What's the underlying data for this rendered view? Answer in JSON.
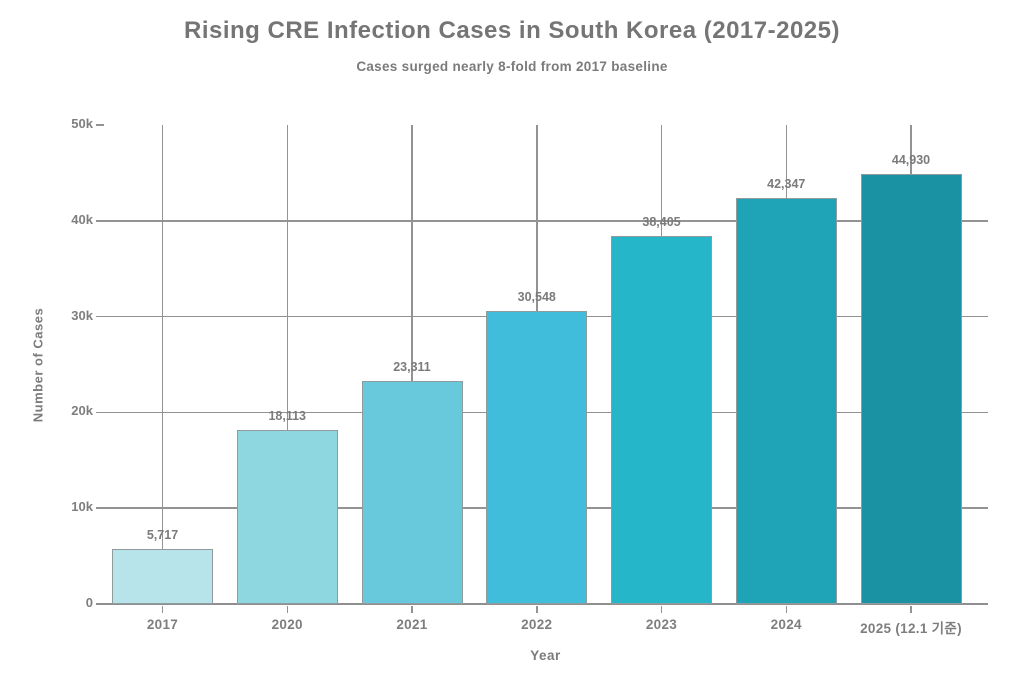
{
  "chart_data": {
    "type": "bar",
    "title": "Rising CRE Infection Cases in South Korea (2017-2025)",
    "subtitle": "Cases surged nearly 8-fold from 2017 baseline",
    "xlabel": "Year",
    "ylabel": "Number of Cases",
    "categories": [
      "2017",
      "2020",
      "2021",
      "2022",
      "2023",
      "2024",
      "2025 (12.1 기준)"
    ],
    "values": [
      5717,
      18113,
      23311,
      30548,
      38405,
      42347,
      44930
    ],
    "value_labels": [
      "5,717",
      "18,113",
      "23,311",
      "30,548",
      "38,405",
      "42,347",
      "44,930"
    ],
    "ylim": [
      0,
      50000
    ],
    "ytick_values": [
      0,
      10000,
      20000,
      30000,
      40000,
      50000
    ],
    "ytick_labels": [
      "0",
      "10k",
      "20k",
      "30k",
      "40k",
      "50k"
    ],
    "grid": "horizontal-and-vertical, no gridline at 50k, legend none",
    "bar_colors": [
      "#b7e4ea",
      "#8fd7e0",
      "#68c9dd",
      "#3fbddb",
      "#26b6ca",
      "#1fa3b7",
      "#1b92a3"
    ],
    "bar_border_color": "#8f9b9c",
    "grid_color": "#939393",
    "axis_color": "#8f8f8f",
    "text_color": "#7a7a7a",
    "title_color": "#757575",
    "background_color": "#ffffff"
  }
}
